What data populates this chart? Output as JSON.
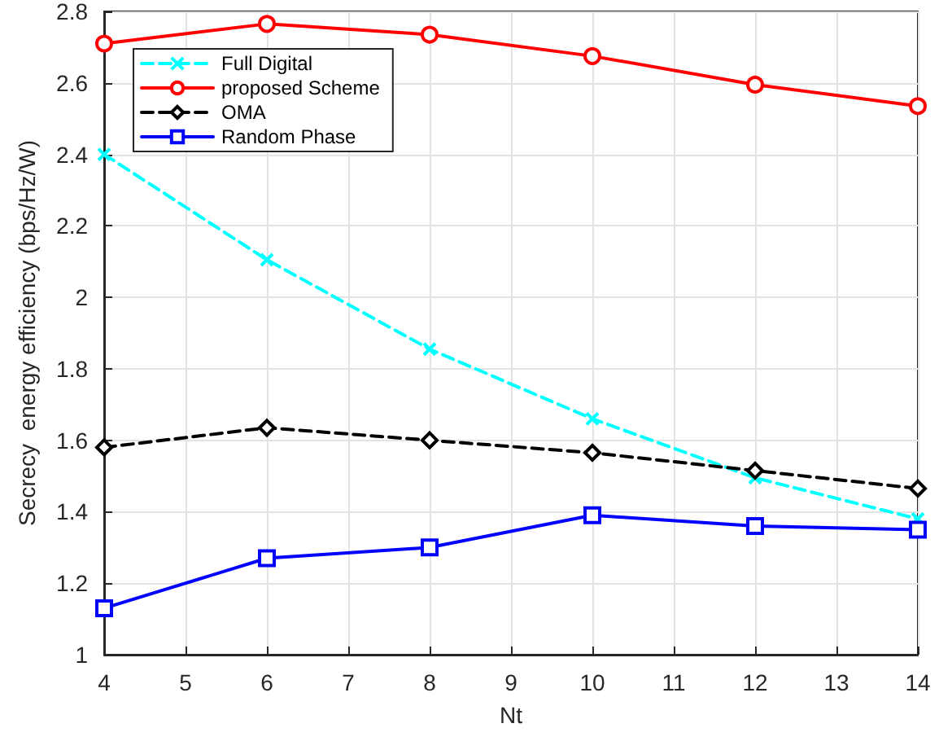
{
  "chart_data": {
    "type": "line",
    "xlabel": "Nt",
    "ylabel": "Secrecy  energy efficiency (bps/Hz/W)",
    "x": [
      4,
      6,
      8,
      10,
      12,
      14
    ],
    "series": [
      {
        "name": "Full Digital",
        "color": "#00ffff",
        "marker": "cross",
        "line_style": "dashed",
        "values": [
          2.4,
          2.105,
          1.855,
          1.66,
          1.495,
          1.38
        ]
      },
      {
        "name": "proposed Scheme",
        "color": "#ff0000",
        "marker": "circle",
        "line_style": "solid",
        "values": [
          2.71,
          2.765,
          2.735,
          2.675,
          2.595,
          2.535
        ]
      },
      {
        "name": "OMA",
        "color": "#000000",
        "marker": "diamond",
        "line_style": "dashed",
        "values": [
          1.58,
          1.635,
          1.6,
          1.565,
          1.515,
          1.465
        ]
      },
      {
        "name": "Random Phase",
        "color": "#0000ff",
        "marker": "square",
        "line_style": "solid",
        "values": [
          1.13,
          1.27,
          1.3,
          1.39,
          1.36,
          1.35
        ]
      }
    ],
    "xlim": [
      4,
      14
    ],
    "xticks": [
      4,
      5,
      6,
      7,
      8,
      9,
      10,
      11,
      12,
      13,
      14
    ],
    "ylim": [
      1,
      2.8
    ],
    "yticks": [
      1,
      1.2,
      1.4,
      1.6,
      1.8,
      2,
      2.2,
      2.4,
      2.6,
      2.8
    ],
    "grid": true,
    "legend": "top left"
  }
}
